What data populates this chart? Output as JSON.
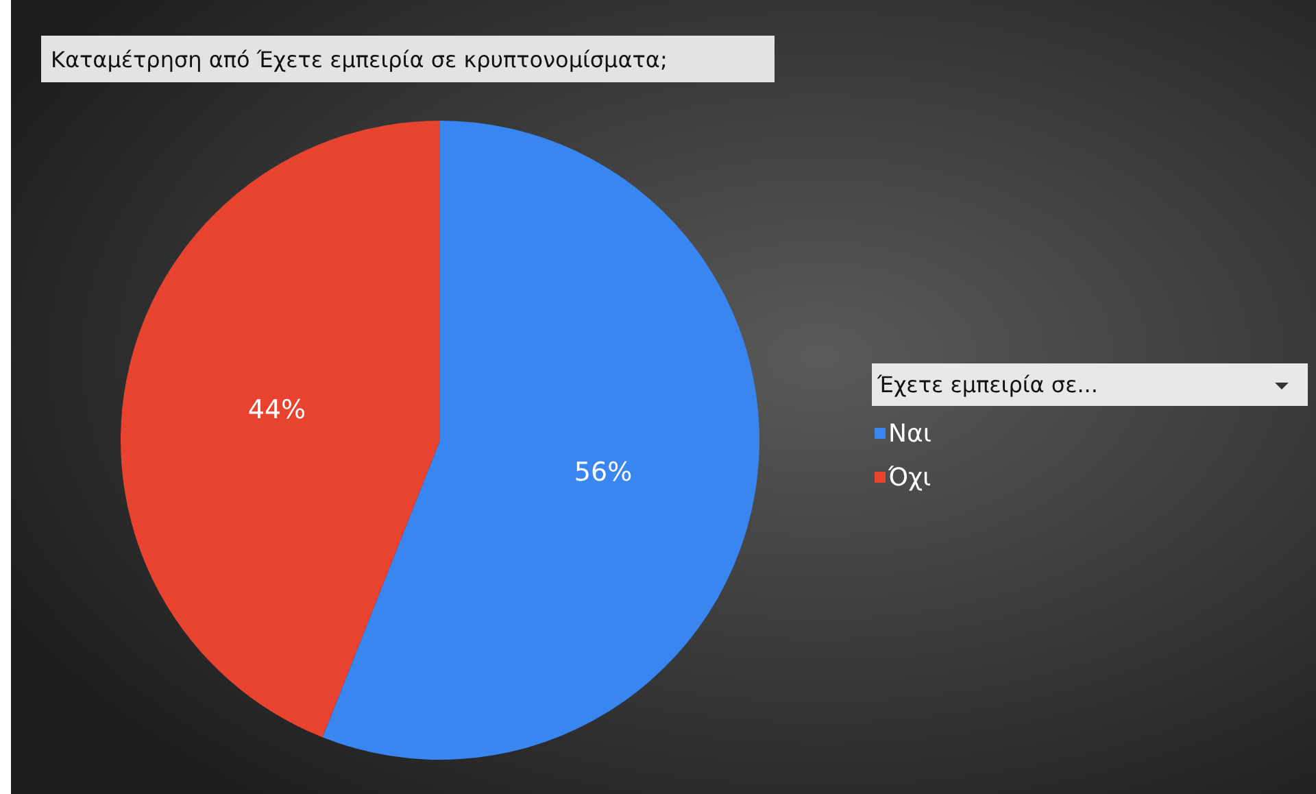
{
  "chart_data": {
    "type": "pie",
    "title": "Καταμέτρηση από Έχετε εμπειρία σε κρυπτονομίσματα;",
    "legend_title": "Έχετε εμπειρία σε...",
    "categories": [
      "Ναι",
      "Όχι"
    ],
    "values": [
      56,
      44
    ],
    "colors": [
      "#3a86f0",
      "#e8432f"
    ],
    "value_labels": [
      "56%",
      "44%"
    ],
    "legend": "right"
  }
}
